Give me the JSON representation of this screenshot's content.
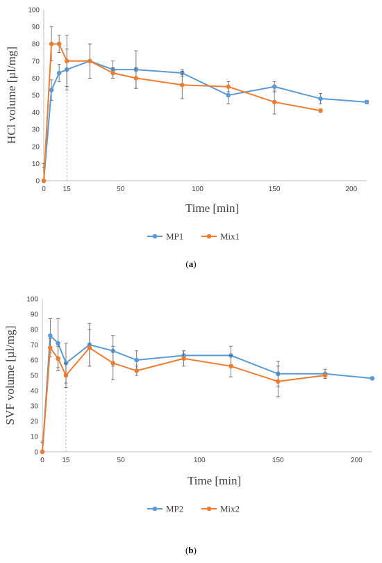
{
  "chart_data": [
    {
      "type": "line",
      "xlabel": "Time [min]",
      "ylabel": "HCl volume [µl/mg]",
      "xlim": [
        0,
        210
      ],
      "ylim": [
        0,
        100
      ],
      "xticks": [
        0,
        15,
        50,
        100,
        150,
        200
      ],
      "yticks": [
        0,
        10,
        20,
        30,
        40,
        50,
        60,
        70,
        80,
        90,
        100
      ],
      "reference_line_x": 15,
      "legend_position": "bottom-center",
      "panel_label": "a",
      "series": [
        {
          "name": "MP1",
          "color": "#5b9bd5",
          "x": [
            0,
            5,
            10,
            15,
            30,
            45,
            60,
            90,
            120,
            150,
            180,
            210
          ],
          "y": [
            0,
            53,
            63,
            65,
            70,
            65,
            65,
            63,
            50,
            55,
            48,
            46
          ],
          "err": [
            8,
            6,
            5,
            12,
            10,
            5,
            11,
            2,
            5,
            3,
            3,
            1
          ]
        },
        {
          "name": "Mix1",
          "color": "#ed7d31",
          "x": [
            0,
            5,
            10,
            15,
            30,
            45,
            60,
            90,
            120,
            150,
            180
          ],
          "y": [
            0,
            80,
            80,
            70,
            70,
            63,
            60,
            56,
            55,
            46,
            41
          ],
          "err": [
            10,
            10,
            5,
            15,
            10,
            3,
            6,
            8,
            3,
            7,
            1
          ]
        }
      ]
    },
    {
      "type": "line",
      "xlabel": "Time [min]",
      "ylabel": "SVF volume [µl/mg]",
      "xlim": [
        0,
        210
      ],
      "ylim": [
        0,
        100
      ],
      "xticks": [
        0,
        15,
        50,
        100,
        150,
        200
      ],
      "yticks": [
        0,
        10,
        20,
        30,
        40,
        50,
        60,
        70,
        80,
        90,
        100
      ],
      "reference_line_x": 15,
      "legend_position": "bottom-center",
      "panel_label": "b",
      "series": [
        {
          "name": "MP2",
          "color": "#5b9bd5",
          "x": [
            0,
            5,
            10,
            15,
            30,
            45,
            60,
            90,
            120,
            150,
            180,
            210
          ],
          "y": [
            0,
            76,
            71,
            58,
            70,
            66,
            60,
            63,
            63,
            51,
            51,
            48
          ],
          "err": [
            7,
            11,
            16,
            13,
            14,
            10,
            6,
            3,
            6,
            8,
            3,
            1
          ]
        },
        {
          "name": "Mix2",
          "color": "#ed7d31",
          "x": [
            0,
            5,
            10,
            15,
            30,
            45,
            60,
            90,
            120,
            150,
            180
          ],
          "y": [
            0,
            68,
            61,
            50,
            68,
            58,
            53,
            61,
            56,
            46,
            50
          ],
          "err": [
            6,
            6,
            8,
            8,
            12,
            11,
            3,
            5,
            7,
            10,
            1
          ]
        }
      ]
    }
  ]
}
